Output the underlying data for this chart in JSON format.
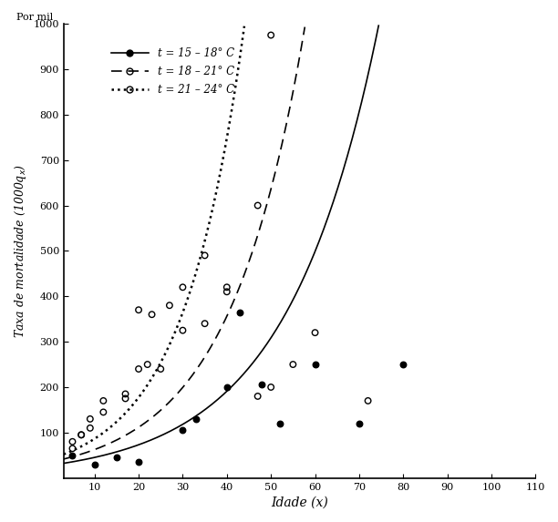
{
  "xlabel": "Idade (x)",
  "top_label": "Por mil",
  "xlim": [
    3,
    110
  ],
  "ylim": [
    0,
    1000
  ],
  "xticks": [
    10,
    20,
    30,
    40,
    50,
    60,
    70,
    80,
    90,
    100,
    110
  ],
  "yticks": [
    100,
    200,
    300,
    400,
    500,
    600,
    700,
    800,
    900,
    1000
  ],
  "series1_label": "t = 15 – 18° C",
  "series2_label": "t = 18 – 21° C",
  "series3_label": "t = 21 – 24° C",
  "scatter1_x": [
    5,
    10,
    15,
    20,
    30,
    33,
    40,
    43,
    48,
    52,
    60,
    70,
    80
  ],
  "scatter1_y": [
    50,
    30,
    45,
    35,
    105,
    130,
    200,
    365,
    205,
    120,
    250,
    120,
    250
  ],
  "scatter2_x": [
    5,
    7,
    9,
    12,
    17,
    20,
    22,
    25,
    30,
    35,
    40,
    47,
    50,
    55,
    60,
    72
  ],
  "scatter2_y": [
    80,
    95,
    110,
    170,
    185,
    240,
    250,
    240,
    325,
    340,
    410,
    180,
    200,
    250,
    320,
    170
  ],
  "scatter3_x": [
    5,
    7,
    9,
    12,
    17,
    20,
    23,
    27,
    30,
    35,
    40,
    47,
    50
  ],
  "scatter3_y": [
    65,
    95,
    130,
    145,
    175,
    370,
    360,
    380,
    420,
    490,
    420,
    600,
    975
  ],
  "curve1_a": 28.0,
  "curve1_b": 0.048,
  "curve2_a": 35.0,
  "curve2_b": 0.058,
  "curve3_a": 42.0,
  "curve3_b": 0.072,
  "bg_color": "#ffffff",
  "line_color": "#000000"
}
